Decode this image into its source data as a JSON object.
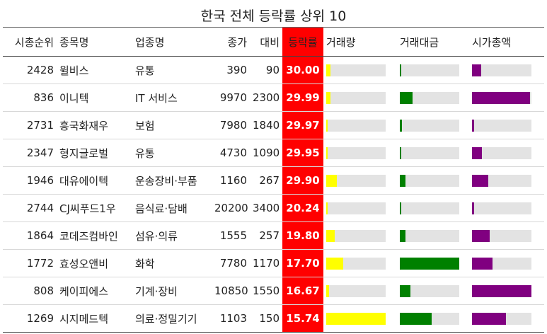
{
  "chart_data": {
    "type": "table",
    "title": "한국 전체 등락률 상위 10",
    "columns": [
      "시총순위",
      "종목명",
      "업종명",
      "종가",
      "대비",
      "등락률",
      "거래량",
      "거래대금",
      "시가총액"
    ],
    "bar_colors": {
      "volume": "#ffff00",
      "trade_value": "#008000",
      "market_cap": "#800080"
    },
    "rows": [
      {
        "rank": "2428",
        "name": "윌비스",
        "sector": "유통",
        "close": "390",
        "change": "90",
        "rate": "30.00",
        "volume": 0.07,
        "trade_value": 0.02,
        "market_cap": 0.15
      },
      {
        "rank": "836",
        "name": "이니텍",
        "sector": "IT 서비스",
        "close": "9970",
        "change": "2300",
        "rate": "29.99",
        "volume": 0.07,
        "trade_value": 0.22,
        "market_cap": 0.98
      },
      {
        "rank": "2731",
        "name": "흥국화재우",
        "sector": "보험",
        "close": "7980",
        "change": "1840",
        "rate": "29.97",
        "volume": 0.02,
        "trade_value": 0.03,
        "market_cap": 0.04
      },
      {
        "rank": "2347",
        "name": "형지글로벌",
        "sector": "유통",
        "close": "4730",
        "change": "1090",
        "rate": "29.95",
        "volume": 0.02,
        "trade_value": 0.02,
        "market_cap": 0.17
      },
      {
        "rank": "1946",
        "name": "대유에이텍",
        "sector": "운송장비·부품",
        "close": "1160",
        "change": "267",
        "rate": "29.90",
        "volume": 0.18,
        "trade_value": 0.1,
        "market_cap": 0.27
      },
      {
        "rank": "2744",
        "name": "CJ씨푸드1우",
        "sector": "음식료·담배",
        "close": "20200",
        "change": "3400",
        "rate": "20.24",
        "volume": 0.01,
        "trade_value": 0.01,
        "market_cap": 0.03
      },
      {
        "rank": "1864",
        "name": "코데즈컴바인",
        "sector": "섬유·의류",
        "close": "1555",
        "change": "257",
        "rate": "19.80",
        "volume": 0.14,
        "trade_value": 0.1,
        "market_cap": 0.3
      },
      {
        "rank": "1772",
        "name": "효성오앤비",
        "sector": "화학",
        "close": "7780",
        "change": "1170",
        "rate": "17.70",
        "volume": 0.28,
        "trade_value": 1.0,
        "market_cap": 0.34
      },
      {
        "rank": "808",
        "name": "케이피에스",
        "sector": "기계·장비",
        "close": "10850",
        "change": "1550",
        "rate": "16.67",
        "volume": 0.05,
        "trade_value": 0.18,
        "market_cap": 1.0
      },
      {
        "rank": "1269",
        "name": "시지메드텍",
        "sector": "의료·정밀기기",
        "close": "1103",
        "change": "150",
        "rate": "15.74",
        "volume": 1.0,
        "trade_value": 0.54,
        "market_cap": 0.57
      }
    ]
  }
}
